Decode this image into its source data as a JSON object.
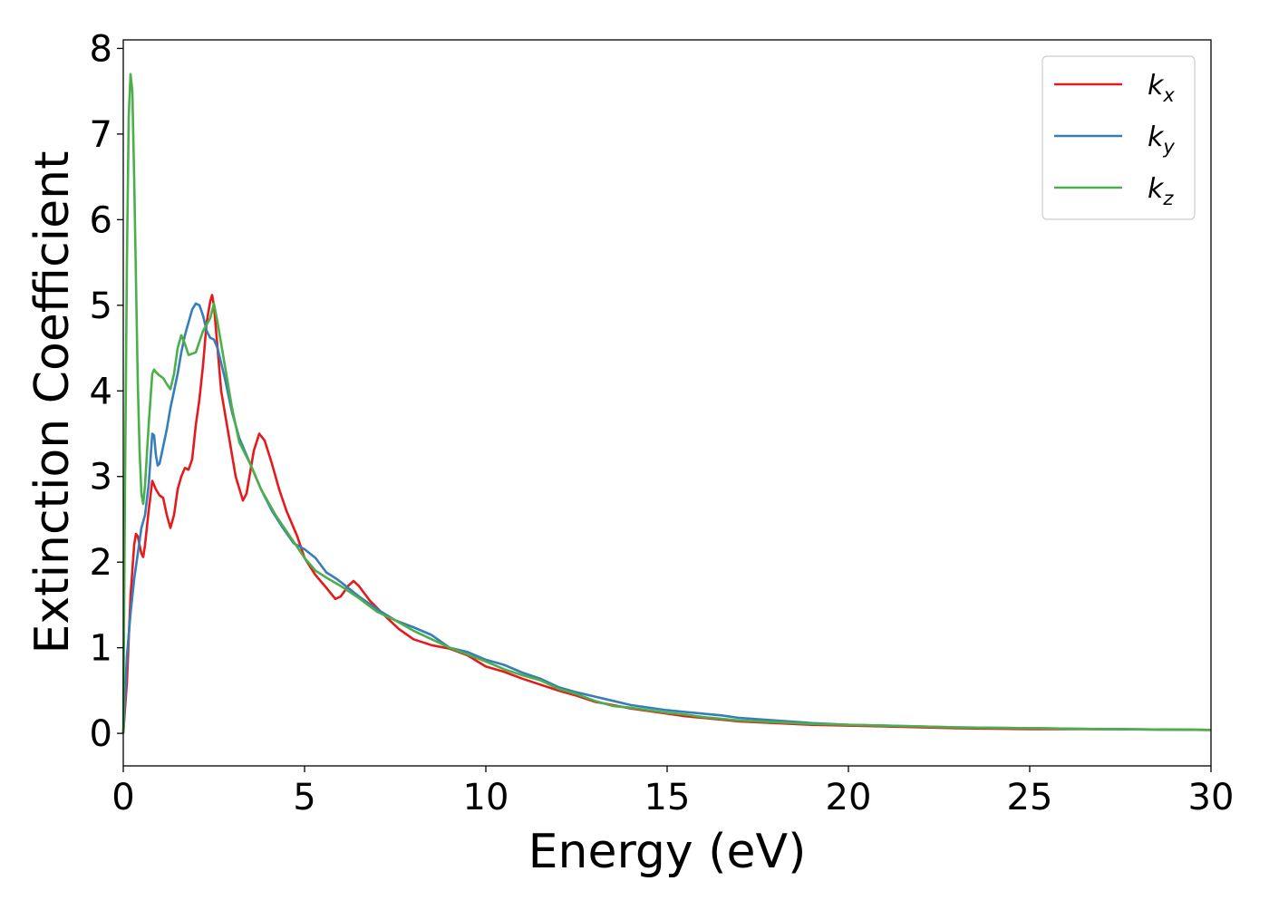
{
  "chart_data": {
    "type": "line",
    "xlabel": "Energy (eV)",
    "ylabel": "Extinction Coefficient",
    "xlim": [
      0,
      30
    ],
    "ylim": [
      -0.38,
      8.1
    ],
    "xticks": [
      "0",
      "5",
      "10",
      "15",
      "20",
      "25",
      "30"
    ],
    "yticks": [
      "0",
      "1",
      "2",
      "3",
      "4",
      "5",
      "6",
      "7",
      "8"
    ],
    "grid": false,
    "legend_position": "top-right",
    "colors": {
      "kx": "#e41a1c",
      "ky": "#377eb8",
      "kz": "#4daf4a"
    },
    "series": [
      {
        "name": "k",
        "subscript": "x",
        "color": "#e41a1c",
        "points": [
          [
            0,
            0
          ],
          [
            0.1,
            0.6
          ],
          [
            0.2,
            1.6
          ],
          [
            0.3,
            2.2
          ],
          [
            0.35,
            2.33
          ],
          [
            0.4,
            2.3
          ],
          [
            0.5,
            2.1
          ],
          [
            0.55,
            2.06
          ],
          [
            0.6,
            2.2
          ],
          [
            0.7,
            2.6
          ],
          [
            0.8,
            2.95
          ],
          [
            0.9,
            2.85
          ],
          [
            1.0,
            2.78
          ],
          [
            1.1,
            2.75
          ],
          [
            1.2,
            2.55
          ],
          [
            1.3,
            2.4
          ],
          [
            1.4,
            2.55
          ],
          [
            1.5,
            2.85
          ],
          [
            1.6,
            3.0
          ],
          [
            1.7,
            3.1
          ],
          [
            1.8,
            3.08
          ],
          [
            1.9,
            3.2
          ],
          [
            2.0,
            3.6
          ],
          [
            2.1,
            3.9
          ],
          [
            2.2,
            4.3
          ],
          [
            2.3,
            4.8
          ],
          [
            2.4,
            5.05
          ],
          [
            2.45,
            5.12
          ],
          [
            2.5,
            5.0
          ],
          [
            2.6,
            4.5
          ],
          [
            2.7,
            4.0
          ],
          [
            2.9,
            3.5
          ],
          [
            3.1,
            3.0
          ],
          [
            3.3,
            2.72
          ],
          [
            3.4,
            2.8
          ],
          [
            3.6,
            3.3
          ],
          [
            3.75,
            3.5
          ],
          [
            3.9,
            3.42
          ],
          [
            4.1,
            3.15
          ],
          [
            4.3,
            2.85
          ],
          [
            4.5,
            2.6
          ],
          [
            4.8,
            2.3
          ],
          [
            5.0,
            2.05
          ],
          [
            5.3,
            1.85
          ],
          [
            5.6,
            1.7
          ],
          [
            5.85,
            1.57
          ],
          [
            6.0,
            1.6
          ],
          [
            6.2,
            1.72
          ],
          [
            6.35,
            1.78
          ],
          [
            6.5,
            1.72
          ],
          [
            6.8,
            1.55
          ],
          [
            7.2,
            1.38
          ],
          [
            7.6,
            1.22
          ],
          [
            8.0,
            1.1
          ],
          [
            8.5,
            1.03
          ],
          [
            9.0,
            0.99
          ],
          [
            9.5,
            0.91
          ],
          [
            10.0,
            0.78
          ],
          [
            10.5,
            0.72
          ],
          [
            11.0,
            0.64
          ],
          [
            11.5,
            0.57
          ],
          [
            12.0,
            0.5
          ],
          [
            12.5,
            0.44
          ],
          [
            13.0,
            0.37
          ],
          [
            13.5,
            0.33
          ],
          [
            14.0,
            0.29
          ],
          [
            14.5,
            0.26
          ],
          [
            15.0,
            0.23
          ],
          [
            15.5,
            0.2
          ],
          [
            16.0,
            0.18
          ],
          [
            16.5,
            0.16
          ],
          [
            17.0,
            0.14
          ],
          [
            18.0,
            0.12
          ],
          [
            19.0,
            0.1
          ],
          [
            20.0,
            0.09
          ],
          [
            21.0,
            0.08
          ],
          [
            22.0,
            0.07
          ],
          [
            23.0,
            0.06
          ],
          [
            25.0,
            0.05
          ],
          [
            27.0,
            0.05
          ],
          [
            30.0,
            0.04
          ]
        ]
      },
      {
        "name": "k",
        "subscript": "y",
        "color": "#377eb8",
        "points": [
          [
            0,
            0
          ],
          [
            0.1,
            0.9
          ],
          [
            0.2,
            1.4
          ],
          [
            0.3,
            1.8
          ],
          [
            0.4,
            2.1
          ],
          [
            0.5,
            2.4
          ],
          [
            0.6,
            2.55
          ],
          [
            0.7,
            2.9
          ],
          [
            0.8,
            3.5
          ],
          [
            0.85,
            3.48
          ],
          [
            0.9,
            3.25
          ],
          [
            0.95,
            3.13
          ],
          [
            1.0,
            3.15
          ],
          [
            1.1,
            3.35
          ],
          [
            1.2,
            3.55
          ],
          [
            1.3,
            3.8
          ],
          [
            1.4,
            4.0
          ],
          [
            1.5,
            4.2
          ],
          [
            1.6,
            4.45
          ],
          [
            1.7,
            4.65
          ],
          [
            1.8,
            4.8
          ],
          [
            1.9,
            4.95
          ],
          [
            2.0,
            5.02
          ],
          [
            2.1,
            5.0
          ],
          [
            2.2,
            4.88
          ],
          [
            2.3,
            4.7
          ],
          [
            2.4,
            4.62
          ],
          [
            2.5,
            4.6
          ],
          [
            2.6,
            4.5
          ],
          [
            2.8,
            4.15
          ],
          [
            3.0,
            3.75
          ],
          [
            3.2,
            3.45
          ],
          [
            3.5,
            3.15
          ],
          [
            3.8,
            2.85
          ],
          [
            4.1,
            2.6
          ],
          [
            4.4,
            2.4
          ],
          [
            4.7,
            2.22
          ],
          [
            5.0,
            2.15
          ],
          [
            5.3,
            2.05
          ],
          [
            5.6,
            1.88
          ],
          [
            5.9,
            1.8
          ],
          [
            6.2,
            1.7
          ],
          [
            6.5,
            1.6
          ],
          [
            7.0,
            1.45
          ],
          [
            7.5,
            1.32
          ],
          [
            8.0,
            1.24
          ],
          [
            8.5,
            1.15
          ],
          [
            9.0,
            1.0
          ],
          [
            9.5,
            0.95
          ],
          [
            10.0,
            0.86
          ],
          [
            10.5,
            0.8
          ],
          [
            11.0,
            0.71
          ],
          [
            11.5,
            0.64
          ],
          [
            12.0,
            0.54
          ],
          [
            12.5,
            0.48
          ],
          [
            13.0,
            0.43
          ],
          [
            13.5,
            0.38
          ],
          [
            14.0,
            0.33
          ],
          [
            14.5,
            0.3
          ],
          [
            15.0,
            0.27
          ],
          [
            15.5,
            0.25
          ],
          [
            16.0,
            0.23
          ],
          [
            16.5,
            0.21
          ],
          [
            17.0,
            0.18
          ],
          [
            18.0,
            0.15
          ],
          [
            19.0,
            0.12
          ],
          [
            20.0,
            0.1
          ],
          [
            21.0,
            0.09
          ],
          [
            22.0,
            0.08
          ],
          [
            23.0,
            0.07
          ],
          [
            25.0,
            0.06
          ],
          [
            27.0,
            0.05
          ],
          [
            30.0,
            0.04
          ]
        ]
      },
      {
        "name": "k",
        "subscript": "z",
        "color": "#4daf4a",
        "points": [
          [
            0,
            0
          ],
          [
            0.05,
            3.0
          ],
          [
            0.1,
            5.5
          ],
          [
            0.15,
            7.2
          ],
          [
            0.2,
            7.7
          ],
          [
            0.25,
            7.5
          ],
          [
            0.3,
            6.5
          ],
          [
            0.35,
            5.3
          ],
          [
            0.4,
            4.1
          ],
          [
            0.45,
            3.3
          ],
          [
            0.5,
            2.8
          ],
          [
            0.55,
            2.68
          ],
          [
            0.6,
            2.9
          ],
          [
            0.7,
            3.6
          ],
          [
            0.8,
            4.2
          ],
          [
            0.85,
            4.25
          ],
          [
            0.9,
            4.22
          ],
          [
            1.0,
            4.18
          ],
          [
            1.1,
            4.15
          ],
          [
            1.2,
            4.08
          ],
          [
            1.3,
            4.02
          ],
          [
            1.4,
            4.2
          ],
          [
            1.5,
            4.5
          ],
          [
            1.6,
            4.65
          ],
          [
            1.7,
            4.55
          ],
          [
            1.8,
            4.42
          ],
          [
            2.0,
            4.45
          ],
          [
            2.2,
            4.7
          ],
          [
            2.4,
            4.85
          ],
          [
            2.5,
            5.02
          ],
          [
            2.6,
            4.8
          ],
          [
            2.8,
            4.3
          ],
          [
            3.0,
            3.8
          ],
          [
            3.2,
            3.4
          ],
          [
            3.5,
            3.15
          ],
          [
            3.8,
            2.85
          ],
          [
            4.2,
            2.55
          ],
          [
            4.6,
            2.3
          ],
          [
            5.0,
            2.05
          ],
          [
            5.3,
            1.9
          ],
          [
            5.6,
            1.82
          ],
          [
            6.0,
            1.72
          ],
          [
            6.5,
            1.58
          ],
          [
            7.0,
            1.42
          ],
          [
            7.5,
            1.32
          ],
          [
            8.0,
            1.2
          ],
          [
            8.5,
            1.1
          ],
          [
            9.0,
            1.0
          ],
          [
            9.5,
            0.92
          ],
          [
            10.0,
            0.84
          ],
          [
            10.5,
            0.75
          ],
          [
            11.0,
            0.68
          ],
          [
            11.5,
            0.62
          ],
          [
            12.0,
            0.52
          ],
          [
            12.5,
            0.46
          ],
          [
            13.0,
            0.38
          ],
          [
            13.5,
            0.32
          ],
          [
            14.0,
            0.3
          ],
          [
            14.5,
            0.27
          ],
          [
            15.0,
            0.24
          ],
          [
            15.5,
            0.22
          ],
          [
            16.0,
            0.19
          ],
          [
            16.5,
            0.17
          ],
          [
            17.0,
            0.15
          ],
          [
            18.0,
            0.13
          ],
          [
            19.0,
            0.11
          ],
          [
            20.0,
            0.1
          ],
          [
            21.0,
            0.09
          ],
          [
            22.0,
            0.08
          ],
          [
            23.0,
            0.07
          ],
          [
            25.0,
            0.06
          ],
          [
            27.0,
            0.05
          ],
          [
            30.0,
            0.04
          ]
        ]
      }
    ]
  }
}
